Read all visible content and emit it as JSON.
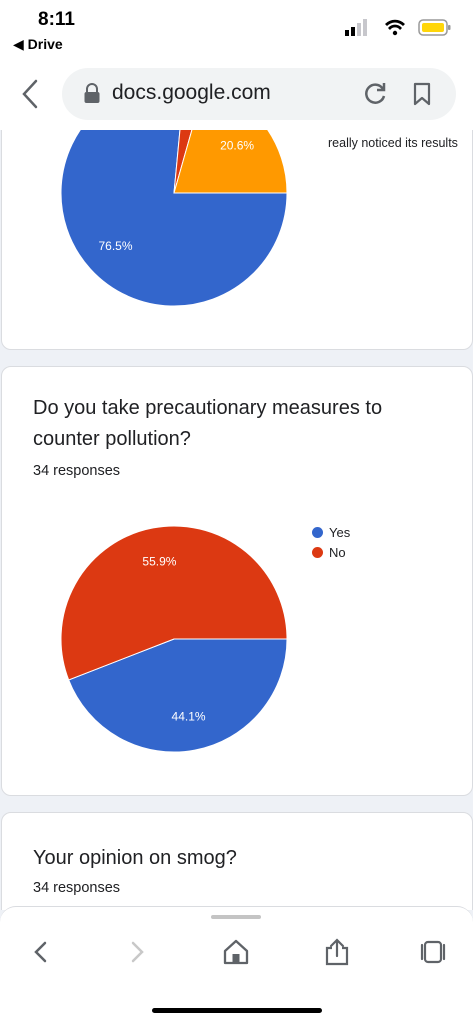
{
  "status_bar": {
    "time": "8:11",
    "back_app": "◀ Drive",
    "battery_color": "#ffd60a"
  },
  "browser": {
    "url": "docs.google.com"
  },
  "card1": {
    "legend_snippet": "really noticed its results",
    "chart_data": {
      "type": "pie",
      "slices": [
        {
          "value": 76.5,
          "label": "76.5%",
          "color": "#3366cc"
        },
        {
          "value": 2.9,
          "label": "",
          "color": "#dc3912"
        },
        {
          "value": 20.6,
          "label": "20.6%",
          "color": "#ff9900"
        }
      ]
    }
  },
  "card2": {
    "question": "Do you take precautionary measures to counter pollution?",
    "responses": "34 responses",
    "chart_data": {
      "type": "pie",
      "slices": [
        {
          "name": "Yes",
          "value": 44.1,
          "label": "44.1%",
          "color": "#3366cc"
        },
        {
          "name": "No",
          "value": 55.9,
          "label": "55.9%",
          "color": "#dc3912"
        }
      ],
      "legend": [
        "Yes",
        "No"
      ]
    }
  },
  "card3": {
    "question": "Your opinion on smog?",
    "responses": "34 responses"
  },
  "icons": {
    "back": "chevron-left-icon",
    "lock": "lock-icon",
    "reload": "reload-icon",
    "bookmark": "bookmark-icon",
    "forward": "chevron-right-icon",
    "home": "home-icon",
    "share": "share-icon",
    "tabs": "tabs-icon"
  }
}
